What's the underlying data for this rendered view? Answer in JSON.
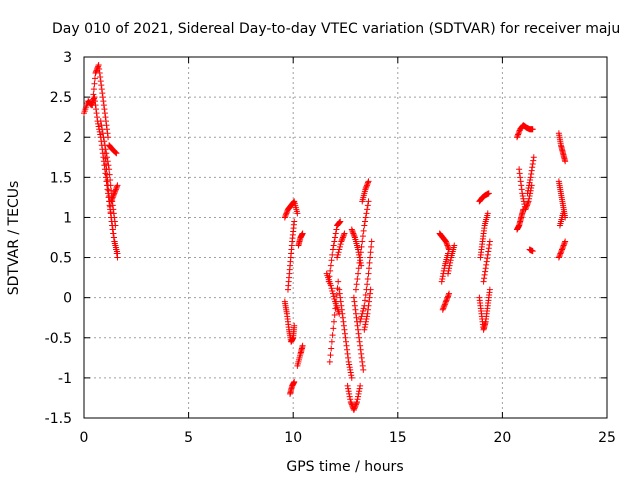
{
  "chart_data": {
    "type": "scatter",
    "title": "Day 010 of 2021, Sidereal Day-to-day VTEC variation (SDTVAR) for receiver maju",
    "xlabel": "GPS time / hours",
    "ylabel": "SDTVAR / TECUs",
    "xlim": [
      0,
      25
    ],
    "ylim": [
      -1.5,
      3
    ],
    "xticks": [
      "0",
      "5",
      "10",
      "15",
      "20",
      "25"
    ],
    "yticks": [
      "-1.5",
      "-1",
      "-0.5",
      "0",
      "0.5",
      "1",
      "1.5",
      "2",
      "2.5",
      "3"
    ],
    "grid": true,
    "marker": "+",
    "series_color": "#ff0000",
    "arcs": [
      {
        "x": [
          0.0,
          0.2,
          0.35,
          0.5
        ],
        "y": [
          2.3,
          2.45,
          2.4,
          2.5
        ]
      },
      {
        "x": [
          0.4,
          0.55,
          0.7,
          0.85,
          1.0,
          1.15
        ],
        "y": [
          2.4,
          2.8,
          2.9,
          2.6,
          2.3,
          2.0
        ]
      },
      {
        "x": [
          0.5,
          0.65,
          0.8,
          0.95,
          1.1,
          1.25,
          1.4,
          1.6
        ],
        "y": [
          2.5,
          2.2,
          2.0,
          1.7,
          1.4,
          1.1,
          0.8,
          0.5
        ]
      },
      {
        "x": [
          0.8,
          1.0,
          1.2,
          1.35,
          1.5
        ],
        "y": [
          2.2,
          1.9,
          1.6,
          1.2,
          0.9
        ]
      },
      {
        "x": [
          1.0,
          1.15,
          1.3,
          1.45,
          1.6
        ],
        "y": [
          1.8,
          1.4,
          1.0,
          0.7,
          0.55
        ]
      },
      {
        "x": [
          1.2,
          1.35,
          1.55
        ],
        "y": [
          1.9,
          1.85,
          1.8
        ]
      },
      {
        "x": [
          1.3,
          1.45,
          1.6
        ],
        "y": [
          1.2,
          1.3,
          1.4
        ]
      },
      {
        "x": [
          9.6,
          9.75,
          9.9,
          10.05,
          10.2
        ],
        "y": [
          1.0,
          1.1,
          1.15,
          1.2,
          1.05
        ]
      },
      {
        "x": [
          9.6,
          9.7,
          9.8,
          9.9,
          10.0,
          10.05
        ],
        "y": [
          -0.05,
          -0.2,
          -0.4,
          -0.55,
          -0.5,
          -0.35
        ]
      },
      {
        "x": [
          9.75,
          9.85,
          9.95,
          10.05
        ],
        "y": [
          0.1,
          0.4,
          0.7,
          0.95
        ]
      },
      {
        "x": [
          9.85,
          9.95,
          10.05
        ],
        "y": [
          -1.2,
          -1.1,
          -1.05
        ]
      },
      {
        "x": [
          10.2,
          10.35,
          10.45
        ],
        "y": [
          -0.85,
          -0.7,
          -0.6
        ]
      },
      {
        "x": [
          10.25,
          10.35,
          10.45
        ],
        "y": [
          0.65,
          0.75,
          0.8
        ]
      },
      {
        "x": [
          11.6,
          11.8,
          12.0,
          12.2
        ],
        "y": [
          0.3,
          0.15,
          -0.05,
          -0.2
        ]
      },
      {
        "x": [
          11.7,
          11.9,
          12.1,
          12.25
        ],
        "y": [
          0.2,
          0.6,
          0.9,
          0.95
        ]
      },
      {
        "x": [
          11.75,
          11.95,
          12.15
        ],
        "y": [
          -0.8,
          -0.3,
          0.2
        ]
      },
      {
        "x": [
          12.1,
          12.3,
          12.45
        ],
        "y": [
          0.5,
          0.7,
          0.8
        ]
      },
      {
        "x": [
          12.2,
          12.35,
          12.5,
          12.65,
          12.8
        ],
        "y": [
          0.1,
          -0.2,
          -0.5,
          -0.8,
          -1.0
        ]
      },
      {
        "x": [
          12.6,
          12.75,
          12.9,
          13.05,
          13.2
        ],
        "y": [
          -1.1,
          -1.3,
          -1.4,
          -1.3,
          -1.1
        ]
      },
      {
        "x": [
          12.8,
          12.95,
          13.1,
          13.25
        ],
        "y": [
          0.85,
          0.75,
          0.6,
          0.4
        ]
      },
      {
        "x": [
          12.9,
          13.05,
          13.2,
          13.35
        ],
        "y": [
          0.0,
          -0.3,
          -0.6,
          -0.9
        ]
      },
      {
        "x": [
          13.0,
          13.2,
          13.4,
          13.6
        ],
        "y": [
          0.1,
          0.5,
          0.9,
          1.2
        ]
      },
      {
        "x": [
          13.2,
          13.4,
          13.6,
          13.75
        ],
        "y": [
          -0.3,
          -0.1,
          0.3,
          0.7
        ]
      },
      {
        "x": [
          13.3,
          13.45,
          13.6
        ],
        "y": [
          1.2,
          1.35,
          1.45
        ]
      },
      {
        "x": [
          13.4,
          13.55,
          13.7
        ],
        "y": [
          -0.4,
          -0.2,
          0.1
        ]
      },
      {
        "x": [
          17.0,
          17.15,
          17.3,
          17.45
        ],
        "y": [
          0.8,
          0.75,
          0.7,
          0.6
        ]
      },
      {
        "x": [
          17.1,
          17.25,
          17.4
        ],
        "y": [
          0.2,
          0.4,
          0.55
        ]
      },
      {
        "x": [
          17.15,
          17.3,
          17.45
        ],
        "y": [
          -0.15,
          -0.05,
          0.05
        ]
      },
      {
        "x": [
          17.4,
          17.55,
          17.7
        ],
        "y": [
          0.3,
          0.5,
          0.65
        ]
      },
      {
        "x": [
          18.9,
          19.05,
          19.2,
          19.35
        ],
        "y": [
          1.2,
          1.25,
          1.28,
          1.3
        ]
      },
      {
        "x": [
          18.9,
          19.0,
          19.1,
          19.2,
          19.3,
          19.4
        ],
        "y": [
          0.0,
          -0.2,
          -0.4,
          -0.3,
          -0.1,
          0.1
        ]
      },
      {
        "x": [
          18.95,
          19.05,
          19.15,
          19.3
        ],
        "y": [
          0.5,
          0.7,
          0.9,
          1.05
        ]
      },
      {
        "x": [
          19.1,
          19.25,
          19.4
        ],
        "y": [
          0.2,
          0.45,
          0.7
        ]
      },
      {
        "x": [
          20.7,
          20.85,
          21.0,
          21.15,
          21.3,
          21.45
        ],
        "y": [
          2.0,
          2.1,
          2.15,
          2.12,
          2.1,
          2.1
        ]
      },
      {
        "x": [
          20.8,
          20.95,
          21.1,
          21.25,
          21.4
        ],
        "y": [
          1.6,
          1.3,
          1.1,
          1.2,
          1.4
        ]
      },
      {
        "x": [
          20.7,
          20.8,
          20.9,
          21.0
        ],
        "y": [
          0.85,
          0.9,
          1.0,
          1.1
        ]
      },
      {
        "x": [
          21.2,
          21.35,
          21.5
        ],
        "y": [
          1.3,
          1.5,
          1.75
        ]
      },
      {
        "x": [
          21.3,
          21.45
        ],
        "y": [
          0.6,
          0.58
        ]
      },
      {
        "x": [
          22.7,
          22.8,
          22.9,
          23.0
        ],
        "y": [
          2.05,
          1.9,
          1.8,
          1.7
        ]
      },
      {
        "x": [
          22.7,
          22.8,
          22.9,
          23.0
        ],
        "y": [
          1.45,
          1.3,
          1.15,
          1.0
        ]
      },
      {
        "x": [
          22.7,
          22.85,
          23.0
        ],
        "y": [
          0.5,
          0.6,
          0.7
        ]
      },
      {
        "x": [
          22.75,
          22.9
        ],
        "y": [
          0.9,
          1.05
        ]
      }
    ]
  }
}
